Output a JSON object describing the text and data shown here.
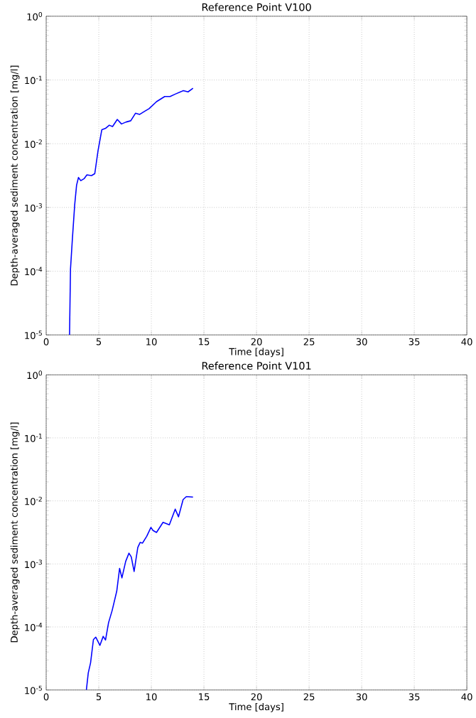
{
  "chart_data": [
    {
      "type": "line",
      "title": "Reference Point V100",
      "xlabel": "Time [days]",
      "ylabel": "Depth-averaged sediment concentration [mg/l]",
      "color": "#0000ff",
      "x": [
        2.22,
        2.31,
        2.49,
        2.71,
        2.89,
        3.07,
        3.29,
        3.6,
        3.87,
        4.31,
        4.62,
        4.93,
        5.29,
        5.64,
        6.0,
        6.31,
        6.76,
        7.16,
        7.6,
        8.04,
        8.49,
        8.89,
        9.38,
        9.78,
        10.49,
        11.27,
        11.78,
        12.27,
        13.04,
        13.49,
        13.96
      ],
      "values": [
        1e-05,
        0.000107,
        0.00032,
        0.0011,
        0.00224,
        0.00295,
        0.00263,
        0.00282,
        0.00324,
        0.00316,
        0.00339,
        0.0078,
        0.0166,
        0.0174,
        0.0195,
        0.0186,
        0.024,
        0.0204,
        0.0219,
        0.0229,
        0.03,
        0.0288,
        0.0324,
        0.0355,
        0.0457,
        0.055,
        0.055,
        0.06,
        0.068,
        0.065,
        0.074
      ],
      "xlim": [
        0,
        40
      ],
      "xticks": [
        0,
        5,
        10,
        15,
        20,
        25,
        30,
        35,
        40
      ],
      "ylim": [
        1e-05,
        1
      ],
      "yticks": [
        {
          "value": 1e-05,
          "label": "10$^{-5}$"
        },
        {
          "value": 0.0001,
          "label": "10$^{-4}$"
        },
        {
          "value": 0.001,
          "label": "10$^{-3}$"
        },
        {
          "value": 0.01,
          "label": "10$^{-2}$"
        },
        {
          "value": 0.1,
          "label": "10$^{-1}$"
        },
        {
          "value": 1,
          "label": "10$^{0}$"
        }
      ],
      "log": true,
      "grid": true
    },
    {
      "type": "line",
      "title": "Reference Point V101",
      "xlabel": "Time [days]",
      "ylabel": "Depth-averaged sediment concentration [mg/l]",
      "color": "#0000ff",
      "x": [
        3.82,
        4.0,
        4.22,
        4.49,
        4.71,
        5.11,
        5.42,
        5.64,
        5.93,
        6.27,
        6.71,
        6.98,
        7.2,
        7.56,
        7.87,
        8.09,
        8.36,
        8.71,
        8.93,
        9.16,
        9.56,
        9.96,
        10.16,
        10.49,
        11.11,
        11.71,
        12.27,
        12.58,
        13.02,
        13.33,
        13.96
      ],
      "values": [
        1e-05,
        1.86e-05,
        2.7e-05,
        6.3e-05,
        6.9e-05,
        5.1e-05,
        7.1e-05,
        6.2e-05,
        0.000117,
        0.000182,
        0.00037,
        0.00085,
        0.0006,
        0.0011,
        0.00148,
        0.00129,
        0.00076,
        0.00182,
        0.00219,
        0.00214,
        0.00275,
        0.0038,
        0.00339,
        0.00316,
        0.00457,
        0.00417,
        0.0074,
        0.0056,
        0.0105,
        0.0117,
        0.0115
      ],
      "xlim": [
        0,
        40
      ],
      "xticks": [
        0,
        5,
        10,
        15,
        20,
        25,
        30,
        35,
        40
      ],
      "ylim": [
        1e-05,
        1
      ],
      "yticks": [
        {
          "value": 1e-05,
          "label": "10$^{-5}$"
        },
        {
          "value": 0.0001,
          "label": "10$^{-4}$"
        },
        {
          "value": 0.001,
          "label": "10$^{-3}$"
        },
        {
          "value": 0.01,
          "label": "10$^{-2}$"
        },
        {
          "value": 0.1,
          "label": "10$^{-1}$"
        },
        {
          "value": 1,
          "label": "10$^{0}$"
        }
      ],
      "log": true,
      "grid": true
    }
  ]
}
